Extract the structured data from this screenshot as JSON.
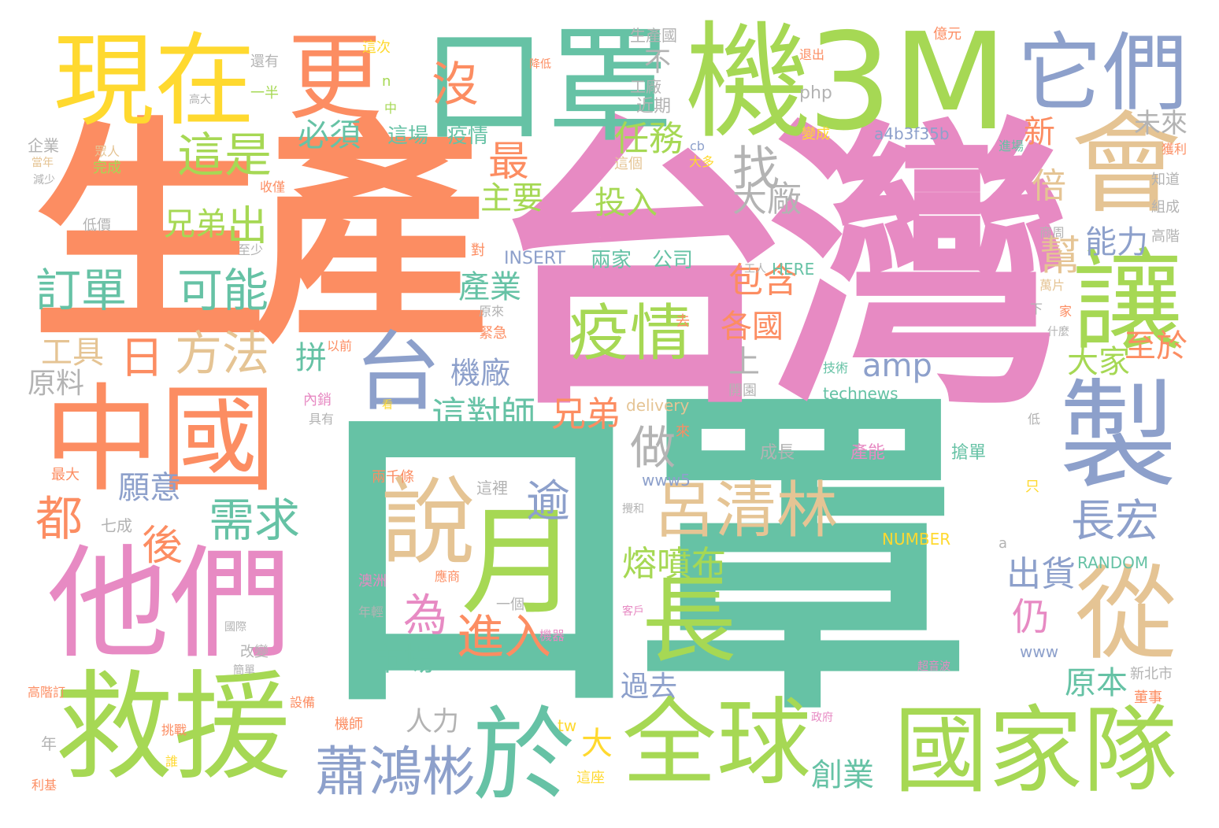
{
  "palette": {
    "green": "#66c2a5",
    "orange": "#fc8d62",
    "blue": "#8da0cb",
    "pink": "#e78ac3",
    "lime": "#a6d854",
    "yellow": "#ffd92f",
    "tan": "#e5c494",
    "gray": "#b3b3b3"
  },
  "words": {
    "w_koujhao_big": "口罩",
    "w_taiwan": "台灣",
    "w_shengchan": "生產",
    "w_koujhao_top": "口罩",
    "w_ji": "機",
    "w_3m": "3M",
    "w_xianzai": "現在",
    "w_geng": "更",
    "w_tamen_it": "它們",
    "w_hui": "會",
    "w_rang": "讓",
    "w_zhi": "製",
    "w_zhongguo": "中國",
    "w_tamen": "他們",
    "w_jiuyuan": "救援",
    "w_yu": "於",
    "w_quanqiu": "全球",
    "w_guojiadui": "國家隊",
    "w_shuo": "說",
    "w_yue": "月",
    "w_chang": "長",
    "w_cong": "從",
    "w_tai": "台",
    "w_yiqing_big": "疫情",
    "w_lvqinglin": "呂清林",
    "w_xiaohongbin": "蕭鴻彬",
    "w_zheshi": "這是",
    "w_dingdan": "訂單",
    "w_keneng": "可能",
    "w_fangfa": "方法",
    "w_ri": "日",
    "w_chu": "出",
    "w_xiongdi": "兄弟",
    "w_bixu": "必須",
    "w_renwu": "任務",
    "w_zhao": "找",
    "w_mei": "沒",
    "w_zui": "最",
    "w_zhuyao": "主要",
    "w_touru": "投入",
    "w_dachang": "大廠",
    "w_zuo": "做",
    "w_zhedui": "這對師",
    "w_xiongdi2": "兄弟",
    "w_xuqiu": "需求",
    "w_yuanyi": "願意",
    "w_dou": "都",
    "w_hou": "後",
    "w_wei": "為",
    "w_jinru": "進入",
    "w_shichang": "市場",
    "w_rongpenbu": "熔噴布",
    "w_yu2": "逾",
    "w_changhong": "長宏",
    "w_chuhuo": "出貨",
    "w_reng": "仍",
    "w_yuanben": "原本",
    "w_guoqu": "過去",
    "w_chuangye": "創業",
    "w_renli": "人力",
    "w_da": "大",
    "w_gongju": "工具",
    "w_yuanliao": "原料",
    "w_chanye": "產業",
    "w_jichang": "機廠",
    "w_pin": "拼",
    "w_amp": "amp",
    "w_baohan": "包含",
    "w_geguo": "各國",
    "w_shang": "上",
    "w_dajia": "大家",
    "w_zhiyu": "至於",
    "w_nengli": "能力",
    "w_bang": "幫",
    "w_bei": "倍",
    "w_xin": "新",
    "w_weilai": "未來",
    "w_bu": "不",
    "w_zhechang": "這場",
    "w_yiqing_small": "疫情",
    "w_insert": "INSERT",
    "w_liangjia": "兩家",
    "w_gongsi": "公司",
    "w_a4b": "a4b3f35b",
    "w_php": "php",
    "w_technews": "technews",
    "w_delivery": "delivery",
    "w_www5": "www5",
    "w_number": "NUMBER",
    "w_random": "RANDOM",
    "w_www": "www",
    "w_chengzhang": "成長",
    "w_channeng": "產能",
    "w_qiangdan": "搶單",
    "w_zheli": "這裡",
    "w_yige": "一個",
    "w_qiye": "企業",
    "w_shengchanguo": "生產國",
    "w_gongchang": "工廠",
    "w_jinqi": "近期",
    "w_haiyou": "還有",
    "w_yiban": "一半",
    "w_gaoda": "高大",
    "w_zheci": "這次",
    "w_n": "n",
    "w_zhong": "中",
    "w_zhege": "這個",
    "w_daduo": "大多",
    "w_cb": "cb",
    "w_zhidao": "知道",
    "w_zucheng": "組成",
    "w_shangzhou": "商周",
    "w_gaojie": "高階",
    "w_wanpian": "萬片",
    "w_jia": "家",
    "w_xia": "下",
    "w_shenme": "什麼",
    "w_jishu": "技術",
    "w_kaimen": "開園",
    "w_neixiao": "內銷",
    "w_juyou": "具有",
    "w_yuanlai": "原來",
    "w_jinji": "緊急",
    "w_yiqian": "以前",
    "w_dui": "對",
    "w_zhishao": "至少",
    "w_dijia": "低價",
    "w_wancheng": "完成",
    "w_dangnian": "當年",
    "w_jianshao": "減少",
    "w_zhongren": "眾人",
    "w_shoujin": "收僅",
    "w_zuida": "最大",
    "w_qicheng": "七成",
    "w_gaibian": "改變",
    "w_jiandan": "簡單",
    "w_gaojieding": "高階訂",
    "w_shebei": "設備",
    "w_jishi": "機師",
    "w_tiaozhan": "挑戰",
    "w_shui": "誰",
    "w_nian": "年",
    "w_libai": "利基",
    "w_zhezuo": "這座",
    "w_tw": "tw",
    "w_jiqi": "機器",
    "w_yingshang": "應商",
    "w_aozhou": "澳洲",
    "w_nianqing": "年輕",
    "w_liangqiantiao": "兩千條",
    "w_kan": "看",
    "w_guoji": "國際",
    "w_xinbeishi": "新北市",
    "w_dongshi": "董事",
    "w_yiyuan": "億元",
    "w_tuichu": "退出",
    "w_bianchen": "變成",
    "w_jinchang": "進場",
    "w_huoli": "獲利",
    "w_di": "低",
    "w_zhi2": "只",
    "w_kehu": "客戶",
    "w_here": "HERE",
    "w_gongren": "工人",
    "w_a": "a",
    "w_chaoyinbo": "超音波",
    "w_qu": "去",
    "w_lai": "來",
    "w_jiangdi": "降低",
    "w_zhengfu": "政府",
    "w_hunhe": "攪和"
  }
}
